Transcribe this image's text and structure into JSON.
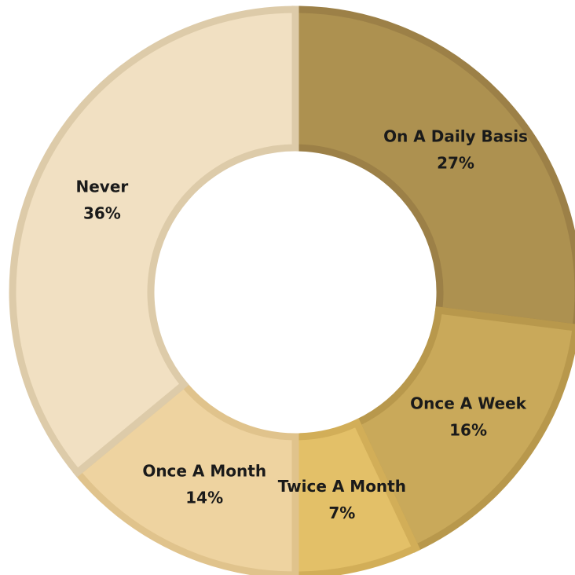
{
  "chart_data": {
    "type": "donut",
    "categories": [
      "On A Daily Basis",
      "Once A Week",
      "Twice A Month",
      "Once A Month",
      "Never"
    ],
    "values": [
      27,
      16,
      7,
      14,
      36
    ],
    "value_labels": [
      "27%",
      "16%",
      "7%",
      "14%",
      "36%"
    ],
    "colors": [
      "#ad9150",
      "#c9a95a",
      "#e3c068",
      "#eed3a0",
      "#f1e0c2"
    ],
    "border_colors": [
      "#9c8047",
      "#b8984c",
      "#d2ae58",
      "#e0c38c",
      "#ddcba9"
    ]
  }
}
